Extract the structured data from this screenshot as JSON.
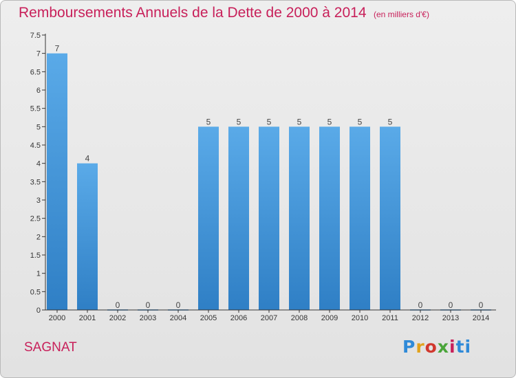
{
  "title": "Remboursements Annuels de la Dette de 2000 à 2014",
  "subtitle": "(en milliers d'€)",
  "town": "SAGNAT",
  "logo": {
    "parts": [
      "P",
      "r",
      "o",
      "x",
      "i",
      "ti"
    ]
  },
  "colors": {
    "title": "#c8205a",
    "bar_light": "#5aaae8",
    "bar_dark": "#2f7fc5",
    "axis": "#333333"
  },
  "chart_data": {
    "type": "bar",
    "title": "Remboursements Annuels de la Dette de 2000 à 2014",
    "subtitle": "(en milliers d'€)",
    "xlabel": "",
    "ylabel": "",
    "categories": [
      "2000",
      "2001",
      "2002",
      "2003",
      "2004",
      "2005",
      "2006",
      "2007",
      "2008",
      "2009",
      "2010",
      "2011",
      "2012",
      "2013",
      "2014"
    ],
    "values": [
      7,
      4,
      0,
      0,
      0,
      5,
      5,
      5,
      5,
      5,
      5,
      5,
      0,
      0,
      0
    ],
    "data_labels": [
      "7",
      "4",
      "0",
      "0",
      "0",
      "5",
      "5",
      "5",
      "5",
      "5",
      "5",
      "5",
      "0",
      "0",
      "0"
    ],
    "ylim": [
      0,
      7.5
    ],
    "yticks": [
      0,
      0.5,
      1,
      1.5,
      2,
      2.5,
      3,
      3.5,
      4,
      4.5,
      5,
      5.5,
      6,
      6.5,
      7,
      7.5
    ],
    "ytick_labels": [
      "0",
      "0.5",
      "1",
      "1.5",
      "2",
      "2.5",
      "3",
      "3.5",
      "4",
      "4.5",
      "5",
      "5.5",
      "6",
      "6.5",
      "7",
      "7.5"
    ],
    "grid": false,
    "legend": "none"
  }
}
